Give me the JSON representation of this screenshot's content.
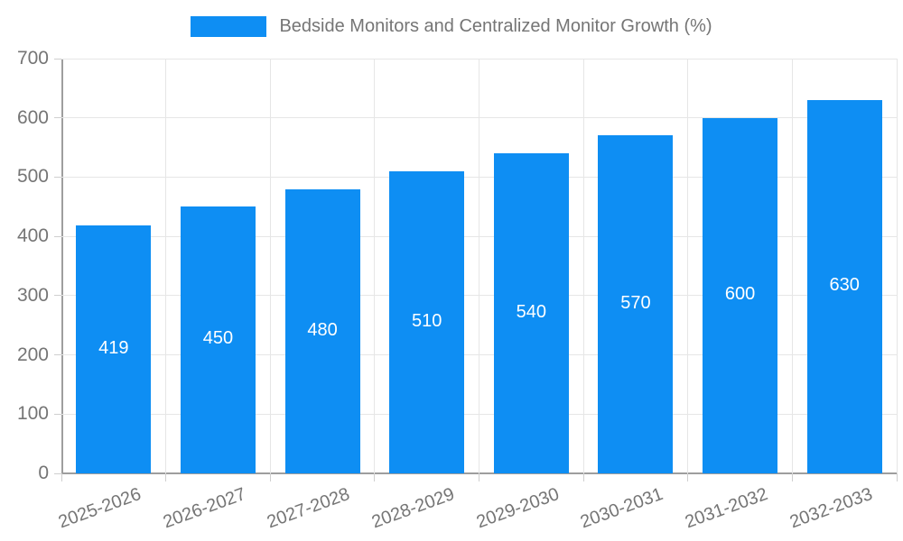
{
  "chart_data": {
    "type": "bar",
    "title": "Bedside Monitors and Centralized Monitor Growth (%)",
    "categories": [
      "2025-2026",
      "2026-2027",
      "2027-2028",
      "2028-2029",
      "2029-2030",
      "2030-2031",
      "2031-2032",
      "2032-2033"
    ],
    "values": [
      419,
      450,
      480,
      510,
      540,
      570,
      600,
      630
    ],
    "value_labels": [
      "419",
      "450",
      "480",
      "510",
      "540",
      "570",
      "600",
      "630"
    ],
    "xlabel": "",
    "ylabel": "",
    "ylim": [
      0,
      700
    ],
    "ytick_step": 100,
    "ytick_labels": [
      "0",
      "100",
      "200",
      "300",
      "400",
      "500",
      "600",
      "700"
    ],
    "legend_position": "top-center",
    "grid": "horizontal-and-vertical",
    "x_label_rotation_deg": -20,
    "colors": {
      "bar": "#0e8ef3",
      "bar_value_text": "#ffffff",
      "axis_text": "#757575",
      "axis_line": "#9e9e9e",
      "gridline": "#e6e6e6",
      "background": "#ffffff"
    }
  }
}
